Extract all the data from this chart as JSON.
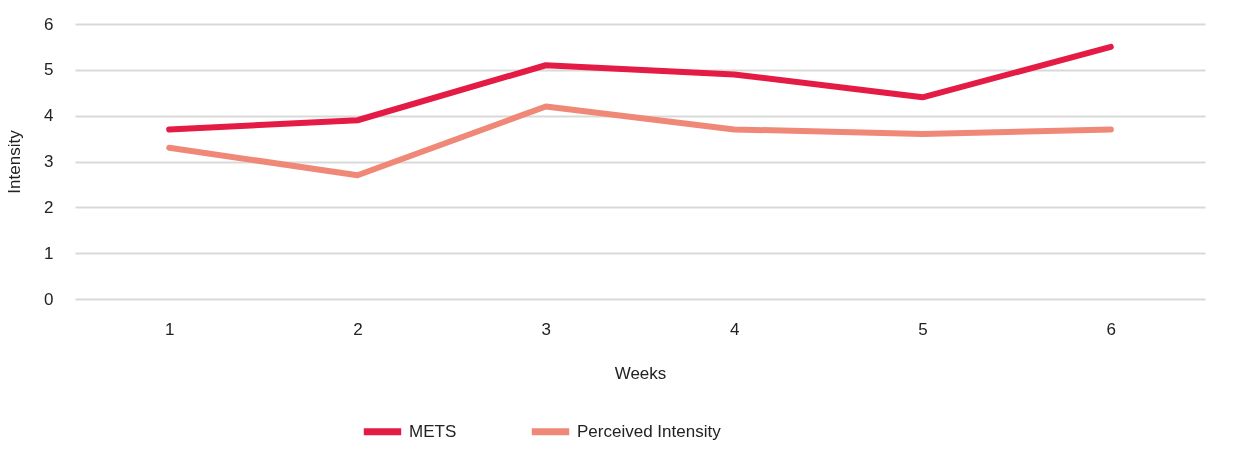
{
  "chart_data": {
    "type": "line",
    "xlabel": "Weeks",
    "ylabel": "Intensity",
    "categories": [
      "1",
      "2",
      "3",
      "4",
      "5",
      "6"
    ],
    "series": [
      {
        "name": "METS",
        "color": "#e31b45",
        "values": [
          3.7,
          3.9,
          5.1,
          4.9,
          4.4,
          5.5
        ]
      },
      {
        "name": "Perceived Intensity",
        "color": "#f08878",
        "values": [
          3.3,
          2.7,
          4.2,
          3.7,
          3.6,
          3.7
        ]
      }
    ],
    "ylim": [
      0,
      6
    ],
    "yticks": [
      0,
      1,
      2,
      3,
      4,
      5,
      6
    ],
    "grid": "y",
    "legend": "bottom",
    "marker": "none",
    "line_style": "solid"
  }
}
